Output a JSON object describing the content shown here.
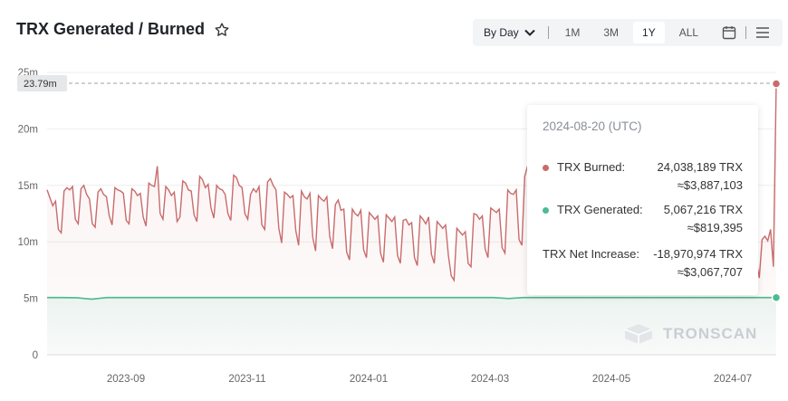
{
  "header": {
    "title": "TRX Generated / Burned",
    "star_icon": "star-outline-icon"
  },
  "toolbar": {
    "by_day_label": "By Day",
    "range_buttons": [
      "1M",
      "3M",
      "1Y",
      "ALL"
    ],
    "active_range": "1Y",
    "calendar_icon": "calendar-icon",
    "menu_icon": "menu-icon"
  },
  "colors": {
    "burned": "#c96b6b",
    "generated": "#4dba95",
    "grid": "#eeeeee",
    "axis_text": "#666666"
  },
  "chart_data": {
    "type": "line",
    "y_ticks": [
      "0",
      "5m",
      "10m",
      "15m",
      "20m",
      "25m"
    ],
    "ylim": [
      0,
      25000000
    ],
    "x_ticks": [
      "2023-09",
      "2023-11",
      "2024-01",
      "2024-03",
      "2024-05",
      "2024-07"
    ],
    "crosshair_label": "23.79m",
    "series": [
      {
        "name": "TRX Burned",
        "color": "#c96b6b",
        "points_millions": [
          14.6,
          13.9,
          13.2,
          13.6,
          11.1,
          10.8,
          14.5,
          14.8,
          14.6,
          14.9,
          12.0,
          11.6,
          14.7,
          15.0,
          14.2,
          13.8,
          11.6,
          11.3,
          14.4,
          14.7,
          14.2,
          14.0,
          12.3,
          11.5,
          14.8,
          14.6,
          14.5,
          14.3,
          11.9,
          11.6,
          14.7,
          14.5,
          14.1,
          14.3,
          12.2,
          11.4,
          15.2,
          15.0,
          14.9,
          16.7,
          12.5,
          12.0,
          14.9,
          14.6,
          14.1,
          14.4,
          11.8,
          12.2,
          15.4,
          15.2,
          14.6,
          14.5,
          12.4,
          11.8,
          15.8,
          15.5,
          14.8,
          15.1,
          13.0,
          12.1,
          15.0,
          14.7,
          14.6,
          14.2,
          12.5,
          11.9,
          15.9,
          15.7,
          15.0,
          14.8,
          12.5,
          12.0,
          14.2,
          14.7,
          14.4,
          14.9,
          11.5,
          11.1,
          15.3,
          15.6,
          15.0,
          14.6,
          11.2,
          9.9,
          14.4,
          14.2,
          13.9,
          14.1,
          11.0,
          9.7,
          14.5,
          14.0,
          13.8,
          14.3,
          10.4,
          9.2,
          14.1,
          13.8,
          13.6,
          14.0,
          10.5,
          9.4,
          13.3,
          13.7,
          12.8,
          12.9,
          9.1,
          8.4,
          12.9,
          12.5,
          12.3,
          12.8,
          9.3,
          8.6,
          12.6,
          12.3,
          12.0,
          12.3,
          9.0,
          8.2,
          12.4,
          12.1,
          11.8,
          12.2,
          8.8,
          8.1,
          11.9,
          12.0,
          11.5,
          11.7,
          8.6,
          7.9,
          12.3,
          12.0,
          11.6,
          12.2,
          8.9,
          8.1,
          11.8,
          11.5,
          11.2,
          11.5,
          8.8,
          7.0,
          6.6,
          11.2,
          10.9,
          10.6,
          10.9,
          8.1,
          7.8,
          12.5,
          12.4,
          12.0,
          12.3,
          9.4,
          8.6,
          13.0,
          12.8,
          12.6,
          12.9,
          9.5,
          9.0,
          14.6,
          14.3,
          14.2,
          14.6,
          10.2,
          9.7,
          15.8,
          16.7,
          14.5,
          13.8,
          11.4,
          10.5,
          14.4,
          14.0,
          13.7,
          14.1,
          10.4,
          9.8,
          14.9,
          14.5,
          14.2,
          14.1,
          10.6,
          10.2,
          14.0,
          13.8,
          13.5,
          13.9,
          10.2,
          9.6,
          13.3,
          13.0,
          12.9,
          13.2,
          9.5,
          9.0,
          12.8,
          12.5,
          12.3,
          12.7,
          9.3,
          8.8,
          12.4,
          12.1,
          12.0,
          12.3,
          9.1,
          8.6,
          12.2,
          12.0,
          11.8,
          12.1,
          9.0,
          8.5,
          11.9,
          11.8,
          11.5,
          11.8,
          8.8,
          8.3,
          11.7,
          11.5,
          11.3,
          11.6,
          8.7,
          8.2,
          11.6,
          11.3,
          11.2,
          11.4,
          8.6,
          8.1,
          11.4,
          11.2,
          11.0,
          11.3,
          8.5,
          8.0,
          11.3,
          11.0,
          10.8,
          11.1,
          8.4,
          7.9,
          11.1,
          10.9,
          10.7,
          11.0,
          8.3,
          6.8,
          10.2,
          10.5,
          10.1,
          11.1,
          7.8,
          24.0
        ],
        "last_value": 24038189
      },
      {
        "name": "TRX Generated",
        "color": "#4dba95",
        "points_millions": [
          5.07,
          5.07,
          5.05,
          4.92,
          5.07,
          5.07,
          5.07,
          5.07,
          5.07,
          5.07,
          5.07,
          5.07,
          5.07,
          5.07,
          5.07,
          5.07,
          5.07,
          5.07,
          5.07,
          5.07,
          5.07,
          5.07,
          5.07,
          5.07,
          5.07,
          5.07,
          5.07,
          5.07,
          5.07,
          5.07,
          5.07,
          4.98,
          5.07,
          5.07,
          5.07,
          5.07,
          5.07,
          5.07,
          5.07,
          5.07,
          5.07,
          5.07,
          5.07,
          5.07,
          5.07,
          5.07,
          5.07,
          5.07,
          5.07,
          5.07
        ],
        "last_value": 5067216
      }
    ]
  },
  "tooltip": {
    "date": "2024-08-20 (UTC)",
    "rows": [
      {
        "label": "TRX Burned:",
        "value": "24,038,189 TRX",
        "usd": "≈$3,887,103",
        "color": "#c96b6b"
      },
      {
        "label": "TRX Generated:",
        "value": "5,067,216 TRX",
        "usd": "≈$819,395",
        "color": "#4dba95"
      },
      {
        "label": "TRX Net Increase:",
        "value": "-18,970,974 TRX",
        "usd": "≈$3,067,707"
      }
    ]
  },
  "watermark": "TRONSCAN"
}
